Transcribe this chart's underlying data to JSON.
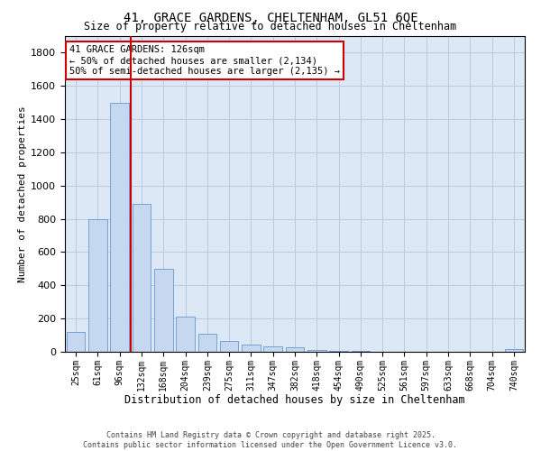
{
  "title_line1": "41, GRACE GARDENS, CHELTENHAM, GL51 6QE",
  "title_line2": "Size of property relative to detached houses in Cheltenham",
  "xlabel": "Distribution of detached houses by size in Cheltenham",
  "ylabel": "Number of detached properties",
  "categories": [
    "25sqm",
    "61sqm",
    "96sqm",
    "132sqm",
    "168sqm",
    "204sqm",
    "239sqm",
    "275sqm",
    "311sqm",
    "347sqm",
    "382sqm",
    "418sqm",
    "454sqm",
    "490sqm",
    "525sqm",
    "561sqm",
    "597sqm",
    "633sqm",
    "668sqm",
    "704sqm",
    "740sqm"
  ],
  "values": [
    120,
    800,
    1500,
    890,
    500,
    210,
    110,
    65,
    45,
    35,
    25,
    10,
    5,
    3,
    2,
    2,
    1,
    1,
    1,
    1,
    15
  ],
  "bar_color": "#c5d8f0",
  "bar_edge_color": "#6699cc",
  "background_color": "#ffffff",
  "plot_bg_color": "#dce8f5",
  "grid_color": "#bbccdd",
  "vline_x_index": 2,
  "vline_color": "#cc0000",
  "annotation_text": "41 GRACE GARDENS: 126sqm\n← 50% of detached houses are smaller (2,134)\n50% of semi-detached houses are larger (2,135) →",
  "annotation_box_color": "#ffffff",
  "annotation_box_edge": "#cc0000",
  "ylim": [
    0,
    1900
  ],
  "yticks": [
    0,
    200,
    400,
    600,
    800,
    1000,
    1200,
    1400,
    1600,
    1800
  ],
  "footer_text": "Contains HM Land Registry data © Crown copyright and database right 2025.\nContains public sector information licensed under the Open Government Licence v3.0."
}
